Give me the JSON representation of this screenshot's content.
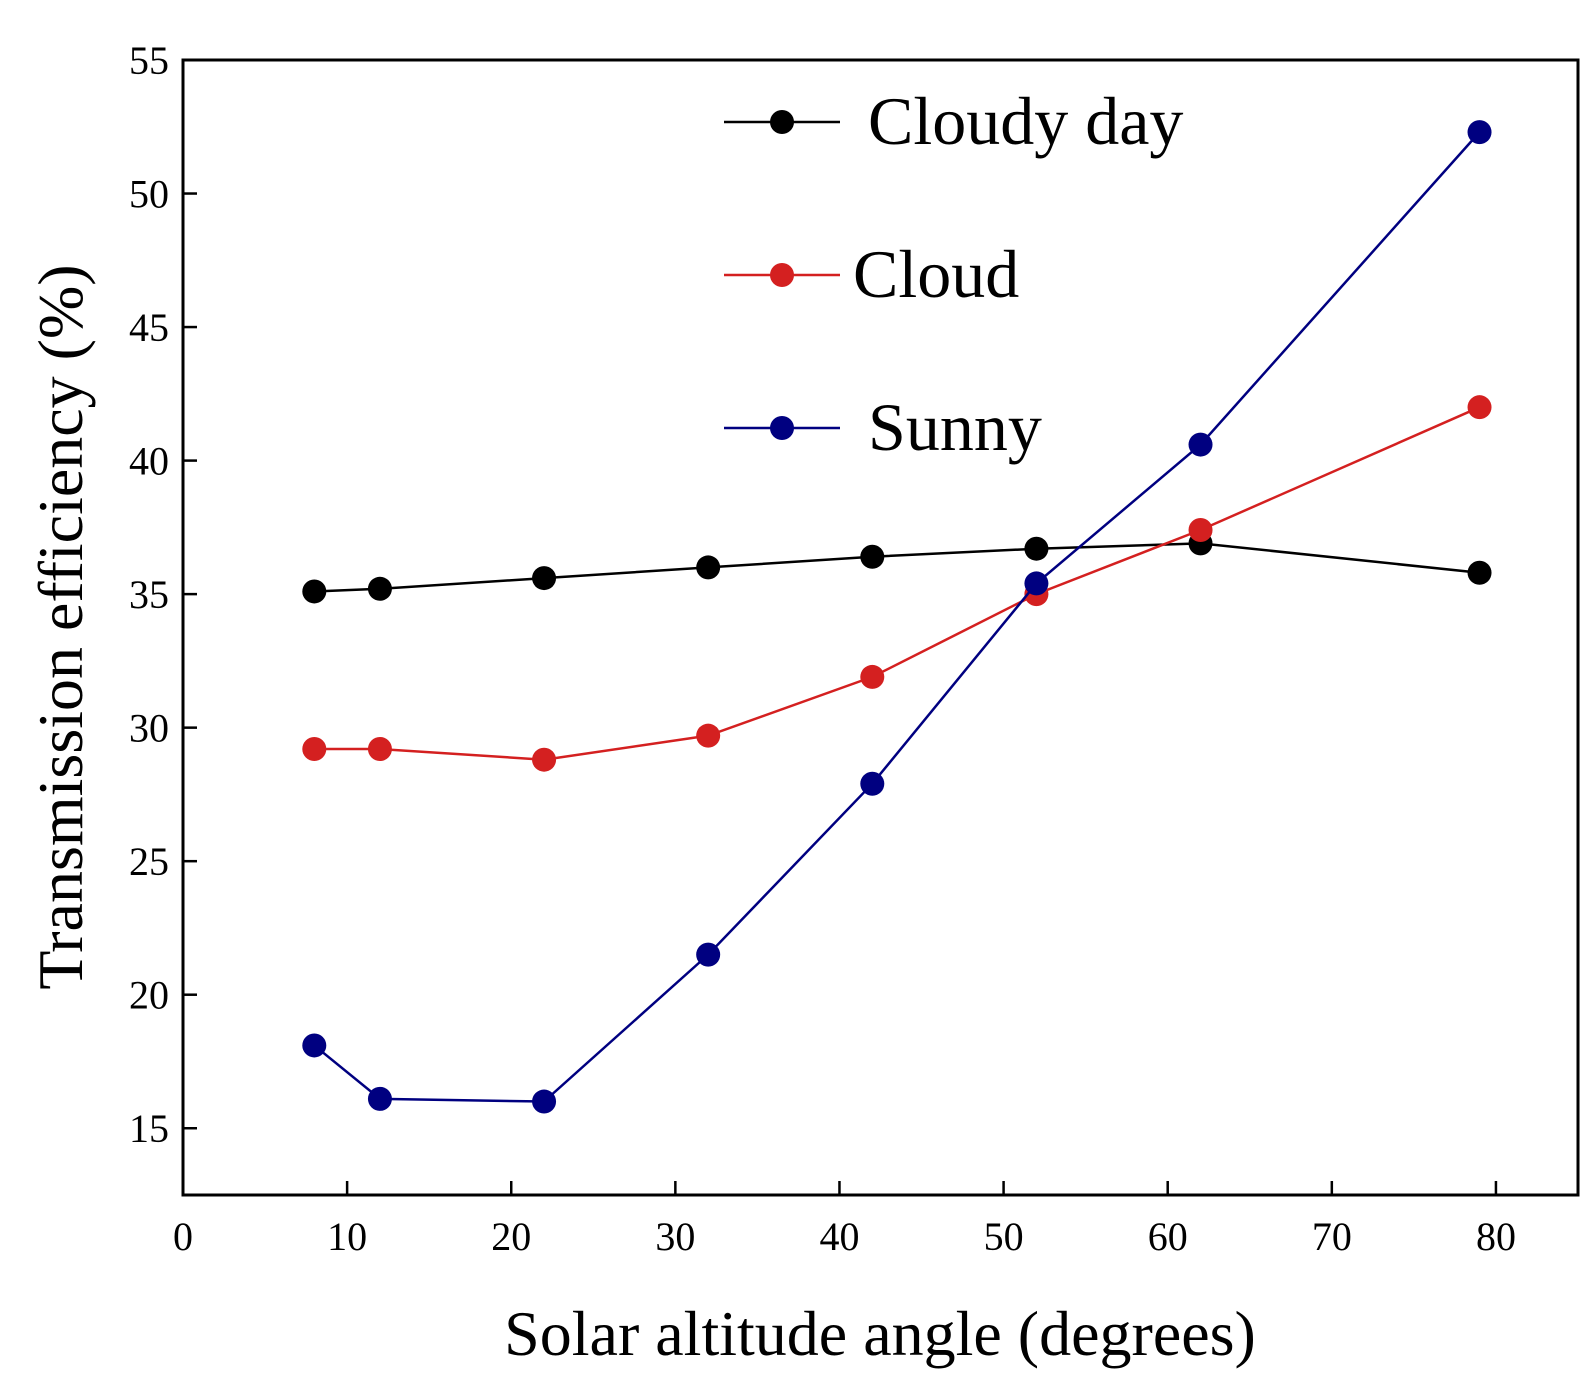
{
  "chart_data": {
    "type": "line",
    "title": "",
    "xlabel": "Solar altitude angle (degrees)",
    "ylabel": "Transmission efficiency (%)",
    "xlim": [
      0,
      85
    ],
    "ylim": [
      12.5,
      55
    ],
    "xticks": [
      0,
      10,
      20,
      30,
      40,
      50,
      60,
      70,
      80
    ],
    "yticks": [
      15,
      20,
      25,
      30,
      35,
      40,
      45,
      50,
      55
    ],
    "grid": false,
    "legend_position": "top-right",
    "x": [
      8,
      12,
      22,
      32,
      42,
      52,
      62,
      79
    ],
    "series": [
      {
        "name": "Cloudy day",
        "color": "#000000",
        "values": [
          35.1,
          35.2,
          35.6,
          36.0,
          36.4,
          36.7,
          36.9,
          35.8
        ]
      },
      {
        "name": "Cloud",
        "color": "#d42020",
        "values": [
          29.2,
          29.2,
          28.8,
          29.7,
          31.9,
          35.0,
          37.4,
          42.0
        ]
      },
      {
        "name": "Sunny",
        "color": "#000080",
        "values": [
          18.1,
          16.1,
          16.0,
          21.5,
          27.9,
          35.4,
          40.6,
          52.3
        ]
      }
    ]
  }
}
